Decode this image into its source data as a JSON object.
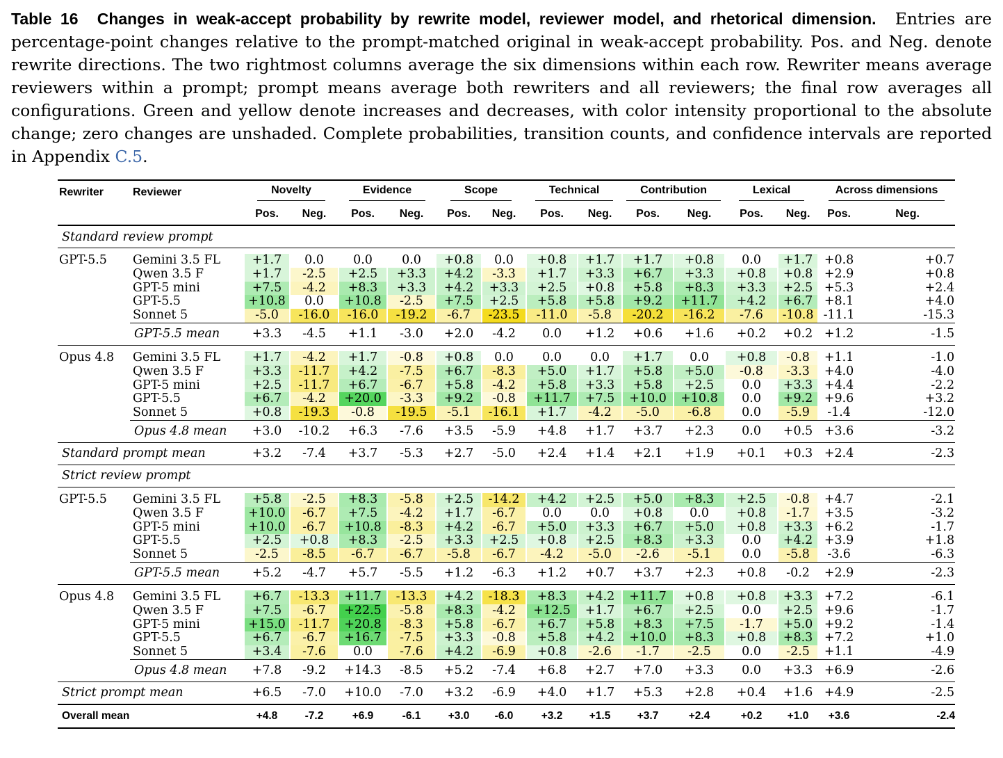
{
  "caption": {
    "label": "Table 16",
    "title": "Changes in weak-accept probability by rewrite model, reviewer model, and rhetorical dimension.",
    "body": "Entries are percentage-point changes relative to the prompt-matched original in weak-accept probability. Pos. and Neg. denote rewrite directions. The two rightmost columns average the six dimensions within each row. Rewriter means average reviewers within a prompt; prompt means average both rewriters and all reviewers; the final row averages all configurations. Green and yellow denote increases and decreases, with color intensity proportional to the absolute change; zero changes are unshaded. Complete probabilities, transition counts, and confidence intervals are reported in",
    "appendix_prefix": "Appendix",
    "appendix_link": "C.5",
    "appendix_suffix": "."
  },
  "header": {
    "rewriter": "Rewriter",
    "reviewer": "Reviewer",
    "groups": [
      "Novelty",
      "Evidence",
      "Scope",
      "Technical",
      "Contribution",
      "Lexical",
      "Across dimensions"
    ],
    "pos": "Pos.",
    "neg": "Neg."
  },
  "sections": [
    {
      "title": "Standard review prompt",
      "blocks": [
        {
          "rewriter": "GPT-5.5",
          "rows": [
            {
              "reviewer": "Gemini 3.5 FL",
              "values": [
                "+1.7",
                "0.0",
                "0.0",
                "0.0",
                "+0.8",
                "0.0",
                "+0.8",
                "+1.7",
                "+1.7",
                "+0.8",
                "0.0",
                "+1.7"
              ],
              "across": [
                "+0.8",
                "+0.7"
              ]
            },
            {
              "reviewer": "Qwen 3.5 F",
              "values": [
                "+1.7",
                "-2.5",
                "+2.5",
                "+3.3",
                "+4.2",
                "-3.3",
                "+1.7",
                "+3.3",
                "+6.7",
                "+3.3",
                "+0.8",
                "+0.8"
              ],
              "across": [
                "+2.9",
                "+0.8"
              ]
            },
            {
              "reviewer": "GPT-5 mini",
              "values": [
                "+7.5",
                "-4.2",
                "+8.3",
                "+3.3",
                "+4.2",
                "+3.3",
                "+2.5",
                "+0.8",
                "+5.8",
                "+8.3",
                "+3.3",
                "+2.5"
              ],
              "across": [
                "+5.3",
                "+2.4"
              ]
            },
            {
              "reviewer": "GPT-5.5",
              "values": [
                "+10.8",
                "0.0",
                "+10.8",
                "-2.5",
                "+7.5",
                "+2.5",
                "+5.8",
                "+5.8",
                "+9.2",
                "+11.7",
                "+4.2",
                "+6.7"
              ],
              "across": [
                "+8.1",
                "+4.0"
              ]
            },
            {
              "reviewer": "Sonnet 5",
              "values": [
                "-5.0",
                "-16.0",
                "-16.0",
                "-19.2",
                "-6.7",
                "-23.5",
                "-11.0",
                "-5.8",
                "-20.2",
                "-16.2",
                "-7.6",
                "-10.8"
              ],
              "across": [
                "-11.1",
                "-15.3"
              ]
            }
          ],
          "mean_label": "GPT-5.5 mean",
          "mean": [
            "+3.3",
            "-4.5",
            "+1.1",
            "-3.0",
            "+2.0",
            "-4.2",
            "0.0",
            "+1.2",
            "+0.6",
            "+1.6",
            "+0.2",
            "+0.2",
            "+1.2",
            "-1.5"
          ]
        },
        {
          "rewriter": "Opus 4.8",
          "rows": [
            {
              "reviewer": "Gemini 3.5 FL",
              "values": [
                "+1.7",
                "-4.2",
                "+1.7",
                "-0.8",
                "+0.8",
                "0.0",
                "0.0",
                "0.0",
                "+1.7",
                "0.0",
                "+0.8",
                "-0.8"
              ],
              "across": [
                "+1.1",
                "-1.0"
              ]
            },
            {
              "reviewer": "Qwen 3.5 F",
              "values": [
                "+3.3",
                "-11.7",
                "+4.2",
                "-7.5",
                "+6.7",
                "-8.3",
                "+5.0",
                "+1.7",
                "+5.8",
                "+5.0",
                "-0.8",
                "-3.3"
              ],
              "across": [
                "+4.0",
                "-4.0"
              ]
            },
            {
              "reviewer": "GPT-5 mini",
              "values": [
                "+2.5",
                "-11.7",
                "+6.7",
                "-6.7",
                "+5.8",
                "-4.2",
                "+5.8",
                "+3.3",
                "+5.8",
                "+2.5",
                "0.0",
                "+3.3"
              ],
              "across": [
                "+4.4",
                "-2.2"
              ]
            },
            {
              "reviewer": "GPT-5.5",
              "values": [
                "+6.7",
                "-4.2",
                "+20.0",
                "-3.3",
                "+9.2",
                "-0.8",
                "+11.7",
                "+7.5",
                "+10.0",
                "+10.8",
                "0.0",
                "+9.2"
              ],
              "across": [
                "+9.6",
                "+3.2"
              ]
            },
            {
              "reviewer": "Sonnet 5",
              "values": [
                "+0.8",
                "-19.3",
                "-0.8",
                "-19.5",
                "-5.1",
                "-16.1",
                "+1.7",
                "-4.2",
                "-5.0",
                "-6.8",
                "0.0",
                "-5.9"
              ],
              "across": [
                "-1.4",
                "-12.0"
              ]
            }
          ],
          "mean_label": "Opus 4.8 mean",
          "mean": [
            "+3.0",
            "-10.2",
            "+6.3",
            "-7.6",
            "+3.5",
            "-5.9",
            "+4.8",
            "+1.7",
            "+3.7",
            "+2.3",
            "0.0",
            "+0.5",
            "+3.6",
            "-3.2"
          ]
        }
      ],
      "prompt_mean_label": "Standard prompt mean",
      "prompt_mean": [
        "+3.2",
        "-7.4",
        "+3.7",
        "-5.3",
        "+2.7",
        "-5.0",
        "+2.4",
        "+1.4",
        "+2.1",
        "+1.9",
        "+0.1",
        "+0.3",
        "+2.4",
        "-2.3"
      ]
    },
    {
      "title": "Strict review prompt",
      "blocks": [
        {
          "rewriter": "GPT-5.5",
          "rows": [
            {
              "reviewer": "Gemini 3.5 FL",
              "values": [
                "+5.8",
                "-2.5",
                "+8.3",
                "-5.8",
                "+2.5",
                "-14.2",
                "+4.2",
                "+2.5",
                "+5.0",
                "+8.3",
                "+2.5",
                "-0.8"
              ],
              "across": [
                "+4.7",
                "-2.1"
              ]
            },
            {
              "reviewer": "Qwen 3.5 F",
              "values": [
                "+10.0",
                "-6.7",
                "+7.5",
                "-4.2",
                "+1.7",
                "-6.7",
                "0.0",
                "0.0",
                "+0.8",
                "0.0",
                "+0.8",
                "-1.7"
              ],
              "across": [
                "+3.5",
                "-3.2"
              ]
            },
            {
              "reviewer": "GPT-5 mini",
              "values": [
                "+10.0",
                "-6.7",
                "+10.8",
                "-8.3",
                "+4.2",
                "-6.7",
                "+5.0",
                "+3.3",
                "+6.7",
                "+5.0",
                "+0.8",
                "+3.3"
              ],
              "across": [
                "+6.2",
                "-1.7"
              ]
            },
            {
              "reviewer": "GPT-5.5",
              "values": [
                "+2.5",
                "+0.8",
                "+8.3",
                "-2.5",
                "+3.3",
                "+2.5",
                "+0.8",
                "+2.5",
                "+8.3",
                "+3.3",
                "0.0",
                "+4.2"
              ],
              "across": [
                "+3.9",
                "+1.8"
              ]
            },
            {
              "reviewer": "Sonnet 5",
              "values": [
                "-2.5",
                "-8.5",
                "-6.7",
                "-6.7",
                "-5.8",
                "-6.7",
                "-4.2",
                "-5.0",
                "-2.6",
                "-5.1",
                "0.0",
                "-5.8"
              ],
              "across": [
                "-3.6",
                "-6.3"
              ]
            }
          ],
          "mean_label": "GPT-5.5 mean",
          "mean": [
            "+5.2",
            "-4.7",
            "+5.7",
            "-5.5",
            "+1.2",
            "-6.3",
            "+1.2",
            "+0.7",
            "+3.7",
            "+2.3",
            "+0.8",
            "-0.2",
            "+2.9",
            "-2.3"
          ]
        },
        {
          "rewriter": "Opus 4.8",
          "rows": [
            {
              "reviewer": "Gemini 3.5 FL",
              "values": [
                "+6.7",
                "-13.3",
                "+11.7",
                "-13.3",
                "+4.2",
                "-18.3",
                "+8.3",
                "+4.2",
                "+11.7",
                "+0.8",
                "+0.8",
                "+3.3"
              ],
              "across": [
                "+7.2",
                "-6.1"
              ]
            },
            {
              "reviewer": "Qwen 3.5 F",
              "values": [
                "+7.5",
                "-6.7",
                "+22.5",
                "-5.8",
                "+8.3",
                "-4.2",
                "+12.5",
                "+1.7",
                "+6.7",
                "+2.5",
                "0.0",
                "+2.5"
              ],
              "across": [
                "+9.6",
                "-1.7"
              ]
            },
            {
              "reviewer": "GPT-5 mini",
              "values": [
                "+15.0",
                "-11.7",
                "+20.8",
                "-8.3",
                "+5.8",
                "-6.7",
                "+6.7",
                "+5.8",
                "+8.3",
                "+7.5",
                "-1.7",
                "+5.0"
              ],
              "across": [
                "+9.2",
                "-1.4"
              ]
            },
            {
              "reviewer": "GPT-5.5",
              "values": [
                "+6.7",
                "-6.7",
                "+16.7",
                "-7.5",
                "+3.3",
                "-0.8",
                "+5.8",
                "+4.2",
                "+10.0",
                "+8.3",
                "+0.8",
                "+8.3"
              ],
              "across": [
                "+7.2",
                "+1.0"
              ]
            },
            {
              "reviewer": "Sonnet 5",
              "values": [
                "+3.4",
                "-7.6",
                "0.0",
                "-7.6",
                "+4.2",
                "-6.9",
                "+0.8",
                "-2.6",
                "-1.7",
                "-2.5",
                "0.0",
                "-2.5"
              ],
              "across": [
                "+1.1",
                "-4.9"
              ]
            }
          ],
          "mean_label": "Opus 4.8 mean",
          "mean": [
            "+7.8",
            "-9.2",
            "+14.3",
            "-8.5",
            "+5.2",
            "-7.4",
            "+6.8",
            "+2.7",
            "+7.0",
            "+3.3",
            "0.0",
            "+3.3",
            "+6.9",
            "-2.6"
          ]
        }
      ],
      "prompt_mean_label": "Strict prompt mean",
      "prompt_mean": [
        "+6.5",
        "-7.0",
        "+10.0",
        "-7.0",
        "+3.2",
        "-6.9",
        "+4.0",
        "+1.7",
        "+5.3",
        "+2.8",
        "+0.4",
        "+1.6",
        "+4.9",
        "-2.5"
      ]
    }
  ],
  "overall": {
    "label": "Overall mean",
    "values": [
      "+4.8",
      "-7.2",
      "+6.9",
      "-6.1",
      "+3.0",
      "-6.0",
      "+3.2",
      "+1.5",
      "+3.7",
      "+2.4",
      "+0.2",
      "+1.0",
      "+3.6",
      "-2.4"
    ]
  },
  "colors": {
    "increase": "#22c82e",
    "decrease": "#f2d600",
    "text": "#000000",
    "link": "#3b66a8"
  },
  "shading_max_abs": 24
}
